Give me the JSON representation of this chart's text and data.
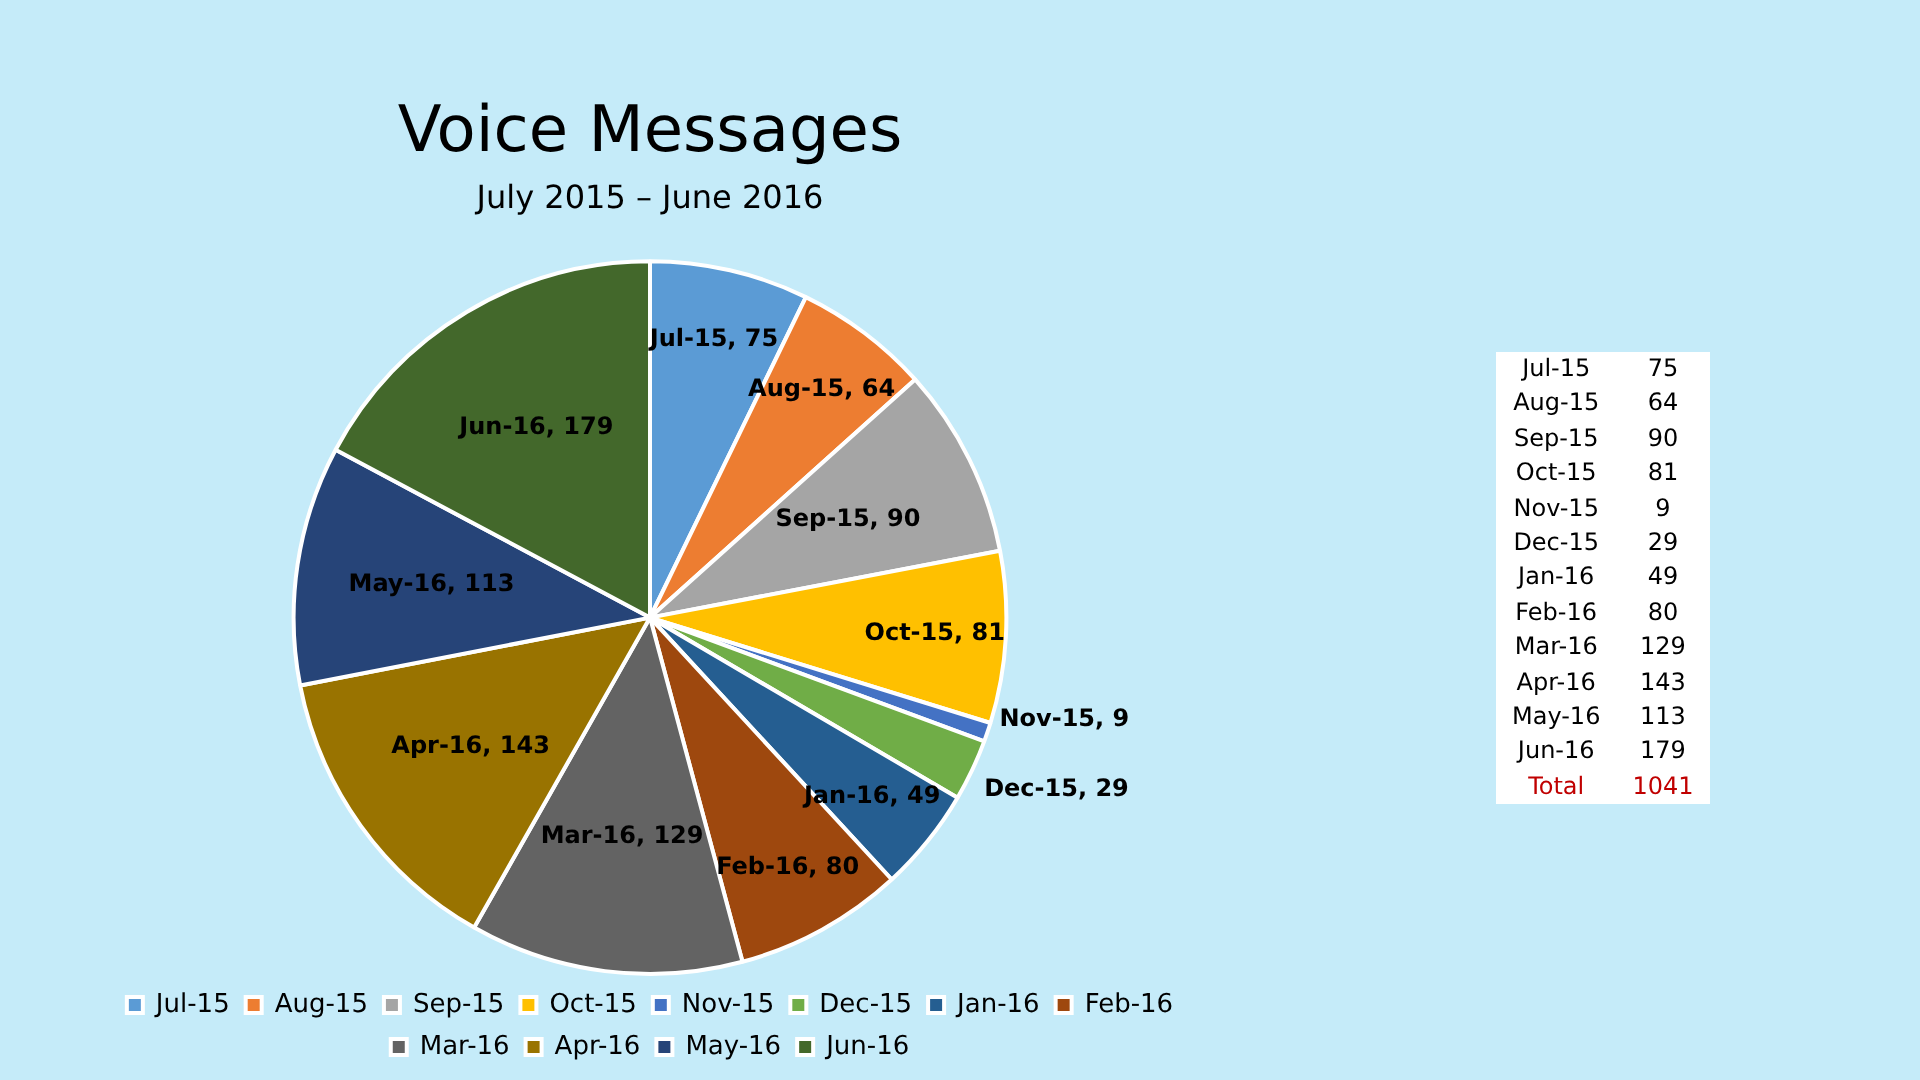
{
  "chart_data": [
    {
      "type": "pie",
      "title": "Voice Messages",
      "subtitle": "July 2015 – June 2016",
      "categories": [
        "Jul-15",
        "Aug-15",
        "Sep-15",
        "Oct-15",
        "Nov-15",
        "Dec-15",
        "Jan-16",
        "Feb-16",
        "Mar-16",
        "Apr-16",
        "May-16",
        "Jun-16"
      ],
      "values": [
        75,
        64,
        90,
        81,
        9,
        29,
        49,
        80,
        129,
        143,
        113,
        179
      ],
      "value_labels": [
        "Jul-15, 75",
        "Aug-15, 64",
        "Sep-15, 90",
        "Oct-15, 81",
        "Nov-15, 9",
        "Dec-15, 29",
        "Jan-16, 49",
        "Feb-16, 80",
        "Mar-16, 129",
        "Apr-16, 143",
        "May-16, 113",
        "Jun-16, 179"
      ],
      "colors": [
        "#5b9bd5",
        "#ed7d31",
        "#a5a5a5",
        "#ffc000",
        "#4472c4",
        "#70ad47",
        "#255e91",
        "#9e480e",
        "#636363",
        "#997300",
        "#264478",
        "#43682b"
      ],
      "legend": "bottom"
    },
    {
      "type": "other",
      "categories": [
        "Jul-15",
        "Aug-15",
        "Sep-15",
        "Oct-15",
        "Nov-15",
        "Dec-15",
        "Jan-16",
        "Feb-16",
        "Mar-16",
        "Apr-16",
        "May-16",
        "Jun-16"
      ],
      "values": [
        75,
        64,
        90,
        81,
        9,
        29,
        49,
        80,
        129,
        143,
        113,
        179
      ],
      "data_labels": true,
      "annotations": [
        "Total"
      ],
      "totals": [
        "1041"
      ]
    }
  ]
}
